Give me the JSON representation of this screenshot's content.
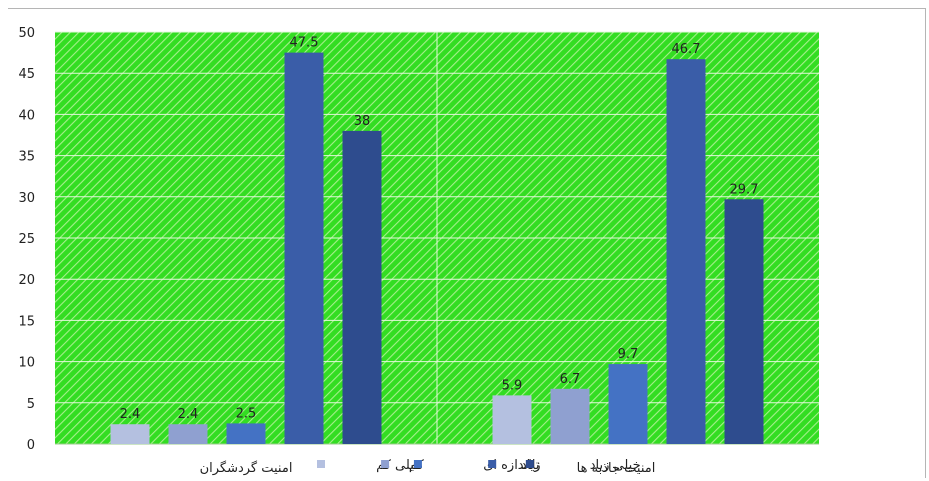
{
  "chart_data": {
    "type": "bar",
    "categories": [
      "امنیت گردشگران",
      "امنیت جاذبه ها"
    ],
    "series": [
      {
        "name": "خیلی کم",
        "values": [
          2.4,
          5.9
        ],
        "color": "#b4c0e0"
      },
      {
        "name": "کم",
        "values": [
          2.4,
          6.7
        ],
        "color": "#8fa0d0"
      },
      {
        "name": "تااندازه ای",
        "values": [
          2.5,
          9.7
        ],
        "color": "#4472c4"
      },
      {
        "name": "زیاد",
        "values": [
          47.5,
          46.7
        ],
        "color": "#3a5da8"
      },
      {
        "name": "خیلی زیاد",
        "values": [
          38,
          29.7
        ],
        "color": "#2e4c8e"
      }
    ],
    "data_labels": [
      [
        "2.4",
        "5.9"
      ],
      [
        "2.4",
        "6.7"
      ],
      [
        "2.5",
        "9.7"
      ],
      [
        "47.5",
        "46.7"
      ],
      [
        "38",
        "29.7"
      ]
    ],
    "yticks": [
      "0",
      "5",
      "10",
      "15",
      "20",
      "25",
      "30",
      "35",
      "40",
      "45",
      "50"
    ],
    "ylim": [
      0,
      50
    ],
    "title": "",
    "xlabel": "",
    "ylabel": "",
    "grid": true,
    "legend_position": "bottom",
    "plot_background": "#33dd22",
    "hatch_color": "#a6f08c"
  }
}
